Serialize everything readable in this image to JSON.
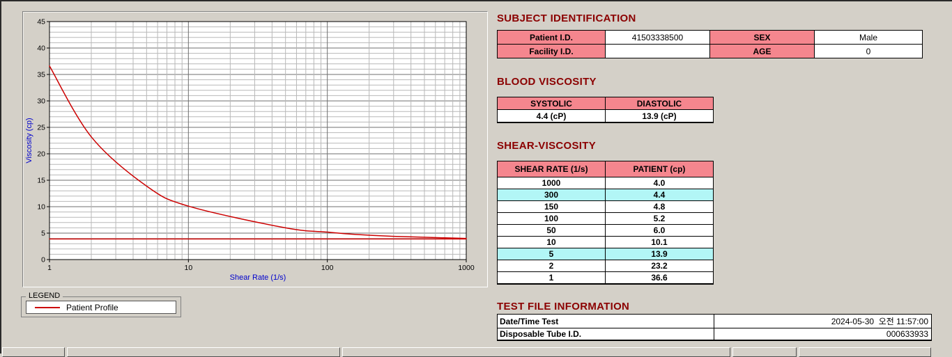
{
  "colors": {
    "header_pink": "#f5868e",
    "highlight_cyan": "#b2f6f6",
    "title_maroon": "#8b0000",
    "series_red": "#cc0000",
    "axis_blue": "#0000cd",
    "window_bg": "#d4d0c8"
  },
  "legend": {
    "box_label": "LEGEND",
    "series_label": "Patient Profile"
  },
  "subject_identification": {
    "title": "SUBJECT IDENTIFICATION",
    "rows": [
      {
        "label1": "Patient I.D.",
        "value1": "41503338500",
        "label2": "SEX",
        "value2": "Male"
      },
      {
        "label1": "Facility I.D.",
        "value1": "",
        "label2": "AGE",
        "value2": "0"
      }
    ]
  },
  "blood_viscosity": {
    "title": "BLOOD VISCOSITY",
    "headers": [
      "SYSTOLIC",
      "DIASTOLIC"
    ],
    "values": [
      "4.4 (cP)",
      "13.9 (cP)"
    ]
  },
  "shear_viscosity": {
    "title": "SHEAR-VISCOSITY",
    "headers": [
      "SHEAR RATE (1/s)",
      "PATIENT (cp)"
    ],
    "rows": [
      {
        "rate": "1000",
        "value": "4.0",
        "highlight": false
      },
      {
        "rate": "300",
        "value": "4.4",
        "highlight": true
      },
      {
        "rate": "150",
        "value": "4.8",
        "highlight": false
      },
      {
        "rate": "100",
        "value": "5.2",
        "highlight": false
      },
      {
        "rate": "50",
        "value": "6.0",
        "highlight": false
      },
      {
        "rate": "10",
        "value": "10.1",
        "highlight": false
      },
      {
        "rate": "5",
        "value": "13.9",
        "highlight": true
      },
      {
        "rate": "2",
        "value": "23.2",
        "highlight": false
      },
      {
        "rate": "1",
        "value": "36.6",
        "highlight": false
      }
    ]
  },
  "test_file_information": {
    "title": "TEST FILE INFORMATION",
    "rows": [
      {
        "label": "Date/Time Test",
        "value": "2024-05-30  오전 11:57:00"
      },
      {
        "label": "Disposable Tube I.D.",
        "value": "000633933"
      }
    ]
  },
  "chart_data": {
    "type": "line",
    "title": "",
    "xlabel": "Shear Rate (1/s)",
    "ylabel": "Viscosity (cp)",
    "x_scale": "log",
    "xlim": [
      1,
      1000
    ],
    "ylim": [
      0,
      45
    ],
    "x_ticks": [
      1,
      10,
      100,
      1000
    ],
    "y_ticks": [
      0,
      5,
      10,
      15,
      20,
      25,
      30,
      35,
      40,
      45
    ],
    "grid": "on",
    "legend_position": "below-left",
    "series": [
      {
        "name": "Patient Profile",
        "color": "#cc0000",
        "x": [
          1,
          2,
          5,
          10,
          50,
          100,
          150,
          300,
          1000
        ],
        "y": [
          36.6,
          23.2,
          13.9,
          10.1,
          6.0,
          5.2,
          4.8,
          4.4,
          4.0
        ]
      },
      {
        "name": "reference-line",
        "color": "#cc0000",
        "x": [
          1,
          1000
        ],
        "y": [
          3.9,
          3.9
        ]
      }
    ]
  }
}
